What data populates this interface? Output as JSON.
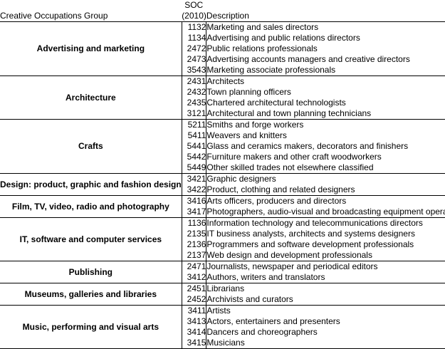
{
  "header": {
    "group": "Creative Occupations Group",
    "soc_line1": "SOC",
    "soc_line2": "(2010)",
    "description": "Description"
  },
  "groups": [
    {
      "name": "Advertising and marketing",
      "rows": [
        {
          "code": "1132",
          "desc": "Marketing and sales directors"
        },
        {
          "code": "1134",
          "desc": "Advertising and public relations directors"
        },
        {
          "code": "2472",
          "desc": "Public relations professionals"
        },
        {
          "code": "2473",
          "desc": "Advertising accounts managers and creative directors"
        },
        {
          "code": "3543",
          "desc": "Marketing associate professionals"
        }
      ]
    },
    {
      "name": "Architecture",
      "rows": [
        {
          "code": "2431",
          "desc": "Architects"
        },
        {
          "code": "2432",
          "desc": "Town planning officers"
        },
        {
          "code": "2435",
          "desc": "Chartered architectural technologists"
        },
        {
          "code": "3121",
          "desc": "Architectural and town planning technicians"
        }
      ]
    },
    {
      "name": "Crafts",
      "rows": [
        {
          "code": "5211",
          "desc": "Smiths and forge workers"
        },
        {
          "code": "5411",
          "desc": "Weavers and knitters"
        },
        {
          "code": "5441",
          "desc": "Glass and ceramics makers, decorators and finishers"
        },
        {
          "code": "5442",
          "desc": "Furniture makers and other craft woodworkers"
        },
        {
          "code": "5449",
          "desc": "Other skilled trades not elsewhere classified"
        }
      ]
    },
    {
      "name": "Design: product, graphic and fashion design",
      "rows": [
        {
          "code": "3421",
          "desc": "Graphic designers"
        },
        {
          "code": "3422",
          "desc": "Product, clothing and related designers"
        }
      ]
    },
    {
      "name": "Film, TV, video, radio and photography",
      "rows": [
        {
          "code": "3416",
          "desc": "Arts officers, producers and directors"
        },
        {
          "code": "3417",
          "desc": "Photographers, audio-visual and broadcasting equipment operators"
        }
      ]
    },
    {
      "name": "IT, software and computer services",
      "rows": [
        {
          "code": "1136",
          "desc": "Information technology and telecommunications directors"
        },
        {
          "code": "2135",
          "desc": "IT business analysts, architects and systems designers"
        },
        {
          "code": "2136",
          "desc": "Programmers and software development professionals"
        },
        {
          "code": "2137",
          "desc": "Web design and development professionals"
        }
      ]
    },
    {
      "name": "Publishing",
      "rows": [
        {
          "code": "2471",
          "desc": "Journalists, newspaper and periodical editors"
        },
        {
          "code": "3412",
          "desc": "Authors, writers and translators"
        }
      ]
    },
    {
      "name": "Museums, galleries and libraries",
      "rows": [
        {
          "code": "2451",
          "desc": "Librarians"
        },
        {
          "code": "2452",
          "desc": "Archivists and curators"
        }
      ]
    },
    {
      "name": "Music, performing and visual arts",
      "rows": [
        {
          "code": "3411",
          "desc": "Artists"
        },
        {
          "code": "3413",
          "desc": "Actors, entertainers and presenters"
        },
        {
          "code": "3414",
          "desc": "Dancers and choreographers"
        },
        {
          "code": "3415",
          "desc": "Musicians"
        }
      ]
    }
  ]
}
